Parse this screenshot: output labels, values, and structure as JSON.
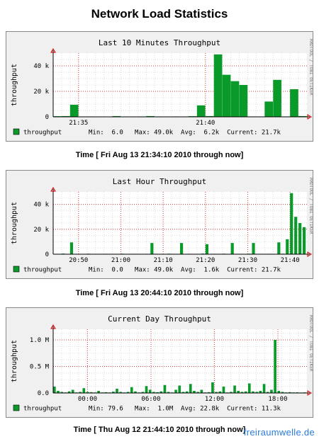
{
  "page": {
    "title": "Network Load Statistics",
    "watermark": "freiraumwelle.de"
  },
  "chart_data": [
    {
      "type": "bar",
      "title": "Last 10 Minutes Throughput",
      "ylabel": "throughput",
      "side_label": "RRDTOOL / TOBI OETIKER",
      "ylim": [
        0,
        50000
      ],
      "yticks": [
        {
          "v": 0,
          "label": "0"
        },
        {
          "v": 20000,
          "label": "20 k"
        },
        {
          "v": 40000,
          "label": "40 k"
        }
      ],
      "xlim": [
        0,
        10
      ],
      "xticks": [
        {
          "v": 1,
          "label": "21:35"
        },
        {
          "v": 6,
          "label": "21:40"
        }
      ],
      "values": [
        500,
        600,
        9500,
        200,
        300,
        200,
        200,
        600,
        200,
        200,
        300,
        600,
        300,
        200,
        300,
        200,
        500,
        9000,
        600,
        49000,
        33000,
        28000,
        25000,
        300,
        200,
        12000,
        29000,
        300,
        21700,
        600
      ],
      "legend": {
        "name": "throughput",
        "stats": "Min:  6.0   Max: 49.0k  Avg:  6.2k  Current: 21.7k"
      },
      "caption": "Time [ Fri Aug 13 21:34:10 2010 through now]",
      "color": "#0a9a2a"
    },
    {
      "type": "bar",
      "title": "Last Hour Throughput",
      "ylabel": "throughput",
      "side_label": "RRDTOOL / TOBI OETIKER",
      "ylim": [
        0,
        50000
      ],
      "yticks": [
        {
          "v": 0,
          "label": "0"
        },
        {
          "v": 20000,
          "label": "20 k"
        },
        {
          "v": 40000,
          "label": "40 k"
        }
      ],
      "xlim": [
        0,
        60
      ],
      "xticks": [
        {
          "v": 6,
          "label": "20:50"
        },
        {
          "v": 16,
          "label": "21:00"
        },
        {
          "v": 26,
          "label": "21:10"
        },
        {
          "v": 36,
          "label": "21:20"
        },
        {
          "v": 46,
          "label": "21:30"
        },
        {
          "v": 56,
          "label": "21:40"
        }
      ],
      "values": [
        0,
        200,
        500,
        0,
        9500,
        300,
        0,
        200,
        400,
        0,
        200,
        0,
        300,
        0,
        200,
        200,
        400,
        0,
        200,
        300,
        0,
        200,
        0,
        9000,
        300,
        0,
        200,
        400,
        0,
        200,
        9000,
        0,
        300,
        0,
        200,
        500,
        8000,
        0,
        300,
        200,
        400,
        0,
        9000,
        300,
        200,
        0,
        400,
        9000,
        200,
        0,
        200,
        300,
        0,
        9500,
        400,
        12000,
        49000,
        30000,
        25000,
        21700
      ],
      "legend": {
        "name": "throughput",
        "stats": "Min:  0.0   Max: 49.0k  Avg:  1.6k  Current: 21.7k"
      },
      "caption": "Time [ Fri Aug 13 20:44:10 2010 through now]",
      "color": "#0a9a2a"
    },
    {
      "type": "bar",
      "title": "Current Day Throughput",
      "ylabel": "throughput",
      "side_label": "RRDTOOL / TOBI OETIKER",
      "ylim": [
        0,
        1200000
      ],
      "yticks": [
        {
          "v": 0,
          "label": "0.0"
        },
        {
          "v": 500000,
          "label": "0.5 M"
        },
        {
          "v": 1000000,
          "label": "1.0 M"
        }
      ],
      "xlim": [
        0,
        24
      ],
      "xticks": [
        {
          "v": 3.25,
          "label": "00:00"
        },
        {
          "v": 9.25,
          "label": "06:00"
        },
        {
          "v": 15.25,
          "label": "12:00"
        },
        {
          "v": 21.25,
          "label": "18:00"
        }
      ],
      "values": [
        120000,
        40000,
        20000,
        10000,
        30000,
        60000,
        10000,
        20000,
        90000,
        20000,
        15000,
        10000,
        40000,
        10000,
        15000,
        10000,
        25000,
        80000,
        20000,
        10000,
        20000,
        110000,
        30000,
        10000,
        20000,
        130000,
        60000,
        20000,
        15000,
        30000,
        150000,
        20000,
        10000,
        60000,
        140000,
        20000,
        30000,
        170000,
        40000,
        20000,
        60000,
        10000,
        15000,
        200000,
        20000,
        30000,
        120000,
        10000,
        20000,
        140000,
        40000,
        20000,
        30000,
        180000,
        30000,
        20000,
        40000,
        170000,
        20000,
        60000,
        1000000,
        40000,
        20000,
        10000,
        15000,
        10000,
        12000,
        8000,
        11300
      ],
      "legend": {
        "name": "throughput",
        "stats": "Min: 79.6   Max:  1.0M  Avg: 22.8k  Current: 11.3k"
      },
      "caption": "Time [ Thu Aug 12 21:44:10 2010 through now]",
      "color": "#0a9a2a"
    }
  ]
}
